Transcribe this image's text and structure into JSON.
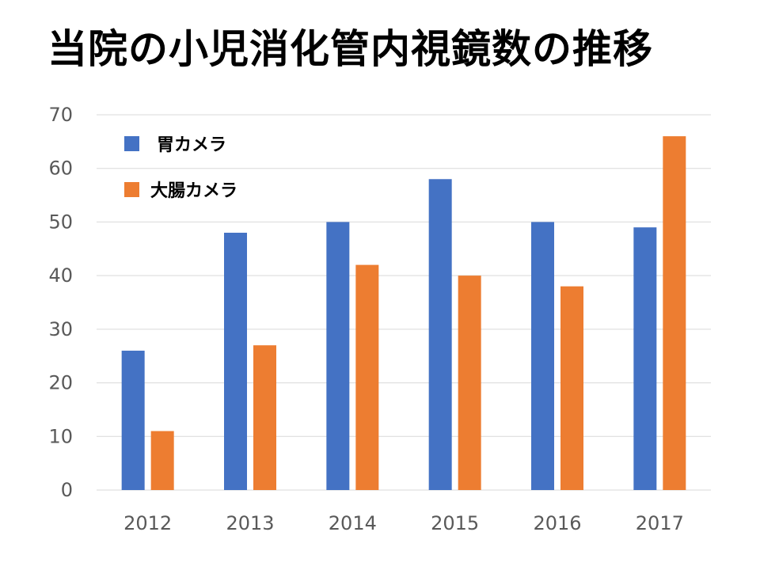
{
  "title": "当院の小児消化管内視鏡数の推移",
  "chart_data": {
    "type": "bar",
    "title": "当院の小児消化管内視鏡数の推移",
    "xlabel": "",
    "ylabel": "",
    "categories": [
      "2012",
      "2013",
      "2014",
      "2015",
      "2016",
      "2017"
    ],
    "series": [
      {
        "name": "胃カメラ",
        "color": "#4472C4",
        "values": [
          26,
          48,
          50,
          58,
          50,
          49
        ]
      },
      {
        "name": "大腸カメラ",
        "color": "#ED7D31",
        "values": [
          11,
          27,
          42,
          40,
          38,
          66
        ]
      }
    ],
    "ylim": [
      0,
      70
    ],
    "yticks": [
      0,
      10,
      20,
      30,
      40,
      50,
      60,
      70
    ],
    "grid": true,
    "legend_position": "top-left"
  }
}
